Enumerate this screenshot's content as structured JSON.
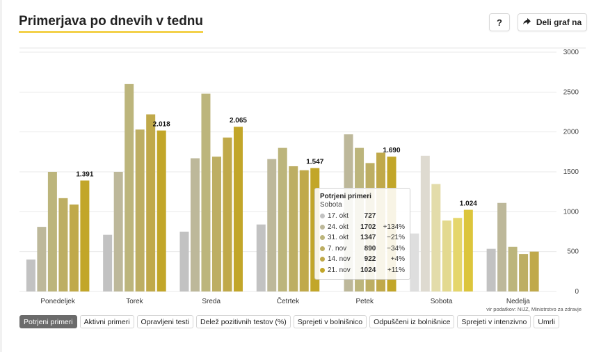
{
  "header": {
    "title": "Primerjava po dnevih v tednu",
    "help_label": "?",
    "share_label": "Deli graf na"
  },
  "source_text": "vir podatkov: NIJZ, Ministrstvo za zdravje",
  "tooltip": {
    "title": "Potrjeni primeri",
    "subtitle": "Sobota",
    "rows": [
      {
        "date": "17. okt",
        "value": "727",
        "change": ""
      },
      {
        "date": "24. okt",
        "value": "1702",
        "change": "+134%"
      },
      {
        "date": "31. okt",
        "value": "1347",
        "change": "−21%"
      },
      {
        "date": "7. nov",
        "value": "890",
        "change": "−34%"
      },
      {
        "date": "14. nov",
        "value": "922",
        "change": "+4%"
      },
      {
        "date": "21. nov",
        "value": "1024",
        "change": "+11%"
      }
    ]
  },
  "tabs": [
    {
      "label": "Potrjeni primeri",
      "active": true
    },
    {
      "label": "Aktivni primeri",
      "active": false
    },
    {
      "label": "Opravljeni testi",
      "active": false
    },
    {
      "label": "Delež pozitivnih testov (%)",
      "active": false
    },
    {
      "label": "Sprejeti v bolnišnico",
      "active": false
    },
    {
      "label": "Odpuščeni iz bolnišnice",
      "active": false
    },
    {
      "label": "Sprejeti v intenzivno",
      "active": false
    },
    {
      "label": "Umrli",
      "active": false
    }
  ],
  "colors": {
    "series": [
      "#c2c2c2",
      "#bdb89a",
      "#bcb57c",
      "#bdae63",
      "#c0a94a",
      "#c2a629"
    ],
    "sobota_series": [
      "#dedede",
      "#dedad0",
      "#e3dcaa",
      "#e3d98f",
      "#e5d66c",
      "#dcc53c"
    ],
    "accent": "#f0c419"
  },
  "chart_data": {
    "type": "bar",
    "categories": [
      "Ponedeljek",
      "Torek",
      "Sreda",
      "Četrtek",
      "Petek",
      "Sobota",
      "Nedelja"
    ],
    "series": [
      {
        "name": "17. okt",
        "values": [
          400,
          710,
          750,
          840,
          0,
          727,
          535
        ]
      },
      {
        "name": "24. okt",
        "values": [
          810,
          1500,
          1670,
          1660,
          1970,
          1702,
          1110
        ]
      },
      {
        "name": "31. okt",
        "values": [
          1500,
          2600,
          2480,
          1800,
          1800,
          1347,
          560
        ]
      },
      {
        "name": "7. nov",
        "values": [
          1170,
          2030,
          1690,
          1570,
          1610,
          890,
          470
        ]
      },
      {
        "name": "14. nov",
        "values": [
          1090,
          2220,
          1930,
          1520,
          1740,
          922,
          500
        ]
      },
      {
        "name": "21. nov",
        "values": [
          1391,
          2018,
          2065,
          1547,
          1690,
          1024,
          null
        ]
      }
    ],
    "data_labels": [
      "1.391",
      "2.018",
      "2.065",
      "1.547",
      "1.690",
      "1.024"
    ],
    "y_ticks": [
      "0",
      "500",
      "1000",
      "1500",
      "2000",
      "2500",
      "3000"
    ],
    "ylim": [
      0,
      3000
    ],
    "grid": true,
    "y_axis_position": "right"
  }
}
